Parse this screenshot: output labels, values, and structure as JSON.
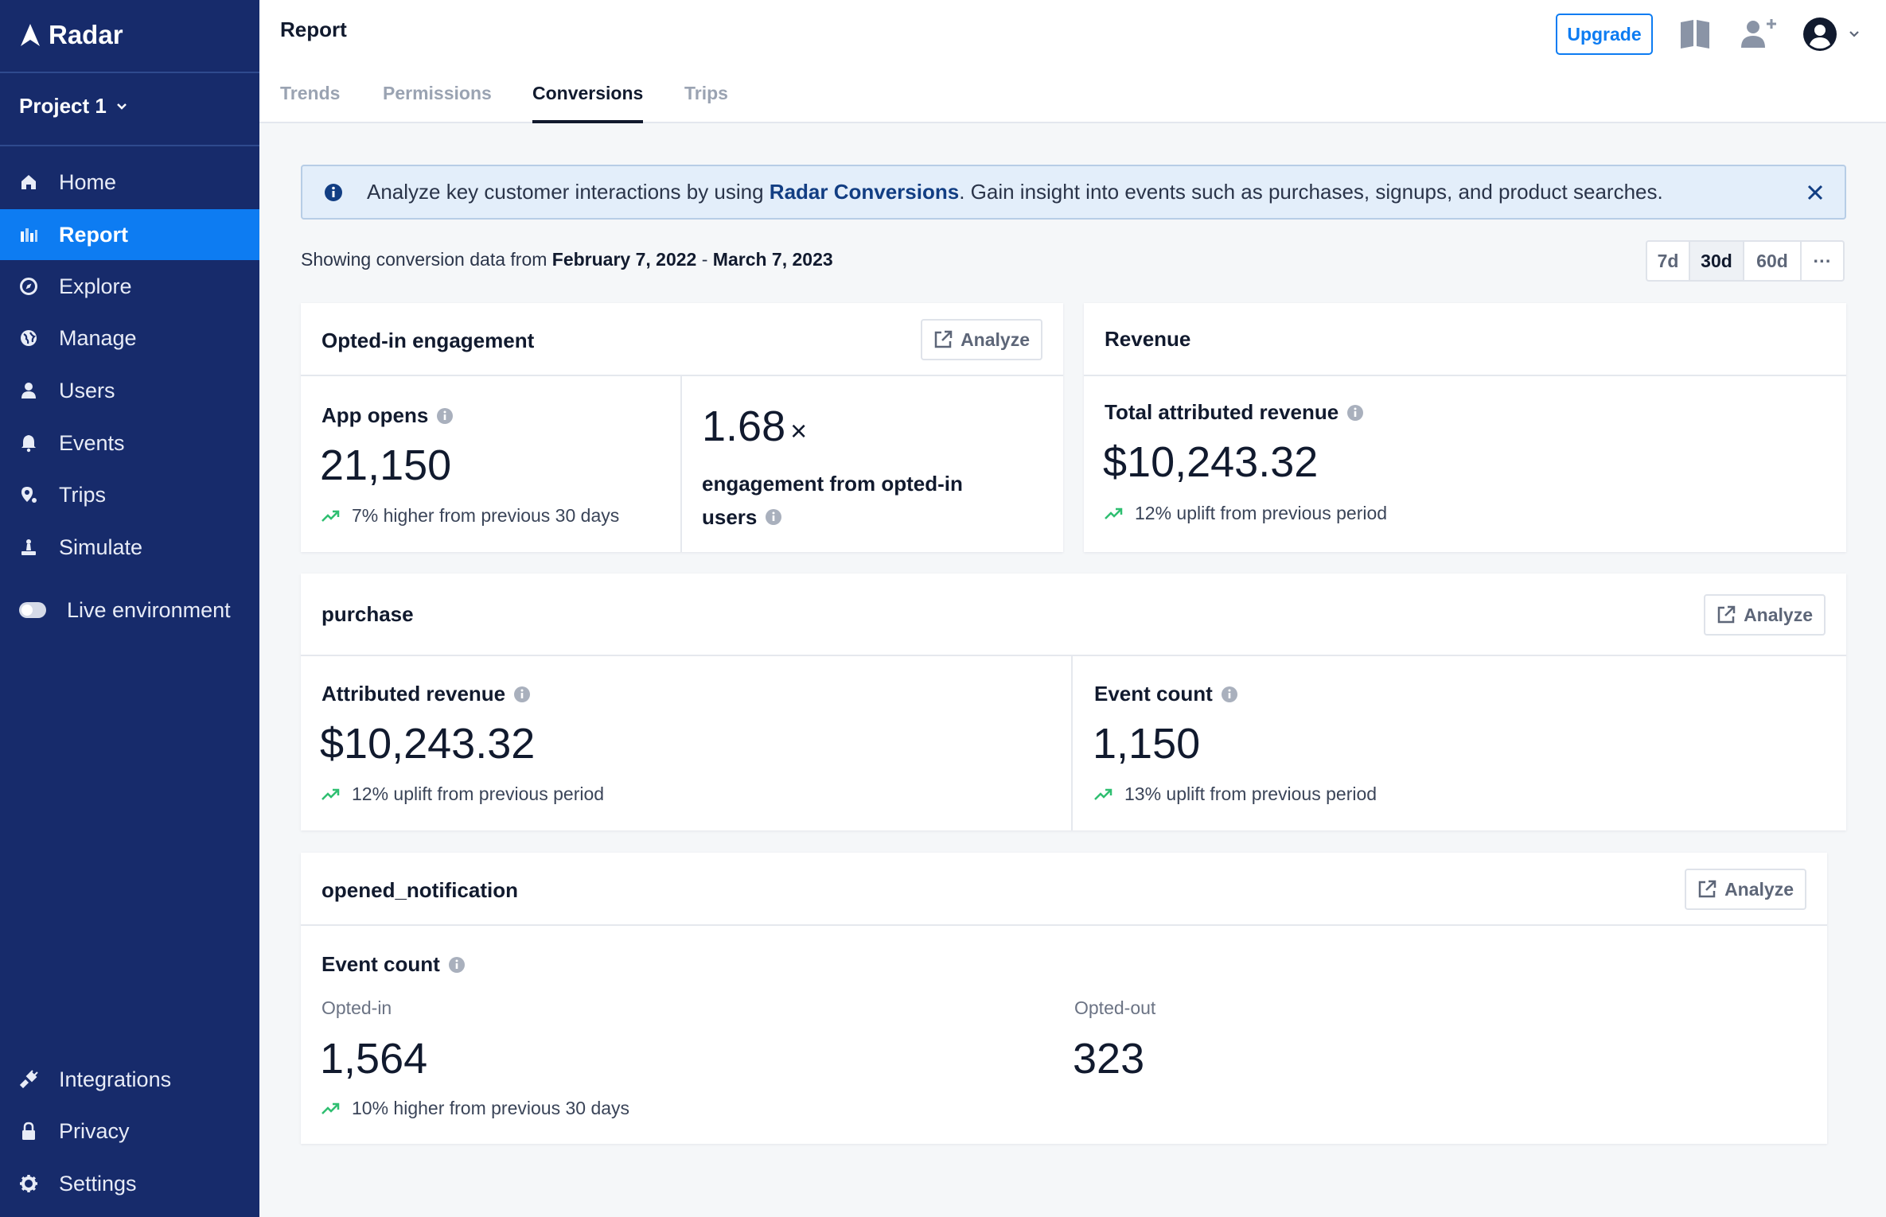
{
  "brand": {
    "name": "Radar"
  },
  "sidebar": {
    "project": "Project 1",
    "items": [
      {
        "label": "Home"
      },
      {
        "label": "Report"
      },
      {
        "label": "Explore"
      },
      {
        "label": "Manage"
      },
      {
        "label": "Users"
      },
      {
        "label": "Events"
      },
      {
        "label": "Trips"
      },
      {
        "label": "Simulate"
      }
    ],
    "live_environment": "Live environment",
    "bottom_items": [
      {
        "label": "Integrations"
      },
      {
        "label": "Privacy"
      },
      {
        "label": "Settings"
      }
    ]
  },
  "header": {
    "title": "Report",
    "tabs": [
      {
        "label": "Trends"
      },
      {
        "label": "Permissions"
      },
      {
        "label": "Conversions"
      },
      {
        "label": "Trips"
      }
    ],
    "upgrade_label": "Upgrade"
  },
  "banner": {
    "prefix": "Analyze key customer interactions by using ",
    "link": "Radar Conversions",
    "suffix": ". Gain insight into events such as purchases, signups, and product searches."
  },
  "date_range": {
    "prefix": "Showing conversion data from ",
    "start": "February 7, 2022",
    "separator": " - ",
    "end": "March 7, 2023",
    "options": [
      "7d",
      "30d",
      "60d",
      "···"
    ],
    "selected": "30d"
  },
  "analyze_label": "Analyze",
  "opted_in_card": {
    "title": "Opted-in engagement",
    "app_opens_label": "App opens",
    "app_opens_value": "21,150",
    "app_opens_delta": "7% higher from previous 30 days",
    "multiplier_value": "1.68",
    "multiplier_symbol": "×",
    "multiplier_label_line1": "engagement from opted-in",
    "multiplier_label_line2": "users"
  },
  "revenue_card": {
    "title": "Revenue",
    "label": "Total attributed revenue",
    "value": "$10,243.32",
    "delta": "12% uplift from previous period"
  },
  "purchase_card": {
    "title": "purchase",
    "revenue_label": "Attributed revenue",
    "revenue_value": "$10,243.32",
    "revenue_delta": "12% uplift from previous period",
    "count_label": "Event count",
    "count_value": "1,150",
    "count_delta": "13% uplift from previous period"
  },
  "notification_card": {
    "title": "opened_notification",
    "label": "Event count",
    "opted_in_label": "Opted-in",
    "opted_in_value": "1,564",
    "opted_in_delta": "10% higher from previous 30 days",
    "opted_out_label": "Opted-out",
    "opted_out_value": "323"
  },
  "colors": {
    "sidebar_bg": "#172b6b",
    "accent": "#0d7cf2",
    "positive": "#2fbf71",
    "banner_bg": "#e3eefa"
  },
  "icons": [
    "radar-logo-icon",
    "chevron-down-icon",
    "home-icon",
    "bar-chart-icon",
    "compass-icon",
    "globe-icon",
    "user-icon",
    "bell-icon",
    "pin-icon",
    "beacon-icon",
    "toggle-icon",
    "plug-icon",
    "lock-icon",
    "gear-icon",
    "book-icon",
    "add-user-icon",
    "avatar-icon",
    "info-icon",
    "close-icon",
    "external-link-icon",
    "trend-up-icon"
  ]
}
